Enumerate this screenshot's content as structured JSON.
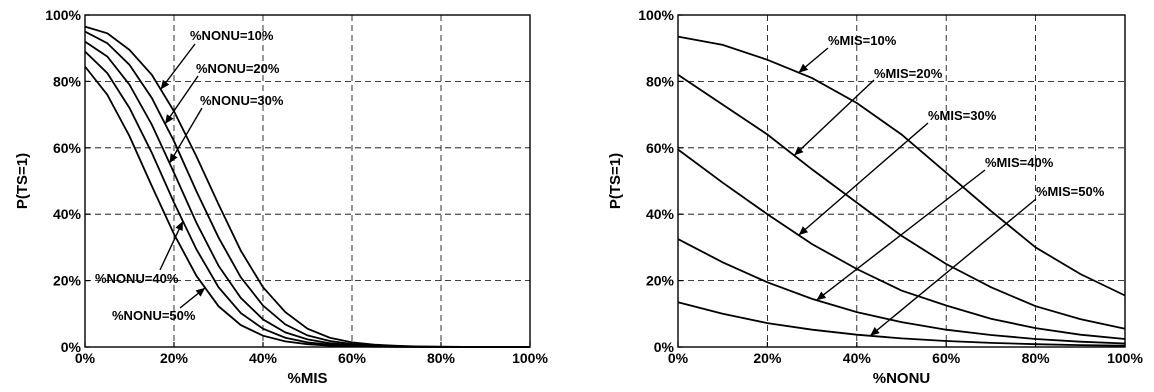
{
  "chart_data": [
    {
      "type": "line",
      "xlabel": "%MIS",
      "ylabel": "P(TS=1)",
      "xlim": [
        0,
        100
      ],
      "ylim": [
        0,
        100
      ],
      "xticks": [
        "0%",
        "20%",
        "40%",
        "60%",
        "80%",
        "100%"
      ],
      "yticks": [
        "0%",
        "20%",
        "40%",
        "60%",
        "80%",
        "100%"
      ],
      "grid": true,
      "x": [
        0,
        5,
        10,
        15,
        20,
        25,
        30,
        35,
        40,
        45,
        50,
        55,
        60,
        65,
        70,
        75,
        80,
        85,
        90,
        95,
        100
      ],
      "series": [
        {
          "values": [
            96.5,
            94.5,
            89.5,
            82,
            71,
            57.5,
            43,
            29,
            18,
            10.5,
            5.5,
            2.8,
            1.4,
            0.7,
            0.35,
            0.15,
            0.07,
            0.03,
            0.01,
            0.005,
            0
          ]
        },
        {
          "values": [
            95,
            91.5,
            85,
            75,
            62,
            47,
            33,
            21,
            12.5,
            6.8,
            3.5,
            1.8,
            0.9,
            0.45,
            0.2,
            0.1,
            0.05,
            0.02,
            0.01,
            0.005,
            0
          ]
        },
        {
          "values": [
            92,
            87.5,
            79,
            67,
            52.5,
            37.5,
            24.5,
            14.8,
            8.3,
            4.4,
            2.3,
            1.15,
            0.55,
            0.27,
            0.13,
            0.06,
            0.03,
            0.01,
            0.005,
            0,
            0
          ]
        },
        {
          "values": [
            89,
            82.5,
            72,
            58.5,
            43.5,
            29.5,
            18,
            10.2,
            5.5,
            2.8,
            1.4,
            0.7,
            0.35,
            0.17,
            0.08,
            0.04,
            0.02,
            0.01,
            0,
            0,
            0
          ]
        },
        {
          "values": [
            84.5,
            76,
            63.5,
            48.5,
            34,
            21.5,
            12.3,
            6.6,
            3.4,
            1.7,
            0.85,
            0.42,
            0.2,
            0.1,
            0.05,
            0.02,
            0.01,
            0,
            0,
            0,
            0
          ]
        }
      ],
      "annotations": [
        {
          "text": "%NONU=10%",
          "series": 0,
          "at_x": 17
        },
        {
          "text": "%NONU=20%",
          "series": 1,
          "at_x": 18
        },
        {
          "text": "%NONU=30%",
          "series": 2,
          "at_x": 19
        },
        {
          "text": "%NONU=40%",
          "series": 3,
          "at_x": 22
        },
        {
          "text": "%NONU=50%",
          "series": 4,
          "at_x": 27
        }
      ]
    },
    {
      "type": "line",
      "xlabel": "%NONU",
      "ylabel": "P(TS=1)",
      "xlim": [
        0,
        100
      ],
      "ylim": [
        0,
        100
      ],
      "xticks": [
        "0%",
        "20%",
        "40%",
        "60%",
        "80%",
        "100%"
      ],
      "yticks": [
        "0%",
        "20%",
        "40%",
        "60%",
        "80%",
        "100%"
      ],
      "grid": true,
      "x": [
        0,
        10,
        20,
        30,
        40,
        50,
        60,
        70,
        80,
        90,
        100
      ],
      "series": [
        {
          "values": [
            93.5,
            91,
            86.5,
            81,
            73.5,
            64,
            52.5,
            41,
            30,
            22,
            15.5
          ]
        },
        {
          "values": [
            82,
            73,
            64,
            53.5,
            43.5,
            33.5,
            25,
            18,
            12.3,
            8.4,
            5.5
          ]
        },
        {
          "values": [
            59.5,
            49.5,
            40,
            31,
            23.5,
            17,
            12.5,
            8.5,
            5.7,
            3.7,
            2.4
          ]
        },
        {
          "values": [
            32.5,
            25.5,
            19.5,
            14.5,
            10.5,
            7.5,
            5.2,
            3.6,
            2.4,
            1.6,
            1.05
          ]
        },
        {
          "values": [
            13.5,
            10,
            7.2,
            5.2,
            3.7,
            2.6,
            1.8,
            1.25,
            0.85,
            0.57,
            0.4
          ]
        }
      ],
      "annotations": [
        {
          "text": "%MIS=10%",
          "series": 0,
          "at_x": 27
        },
        {
          "text": "%MIS=20%",
          "series": 1,
          "at_x": 26
        },
        {
          "text": "%MIS=30%",
          "series": 2,
          "at_x": 27
        },
        {
          "text": "%MIS=40%",
          "series": 3,
          "at_x": 31
        },
        {
          "text": "%MIS=50%",
          "series": 4,
          "at_x": 43
        }
      ]
    }
  ]
}
